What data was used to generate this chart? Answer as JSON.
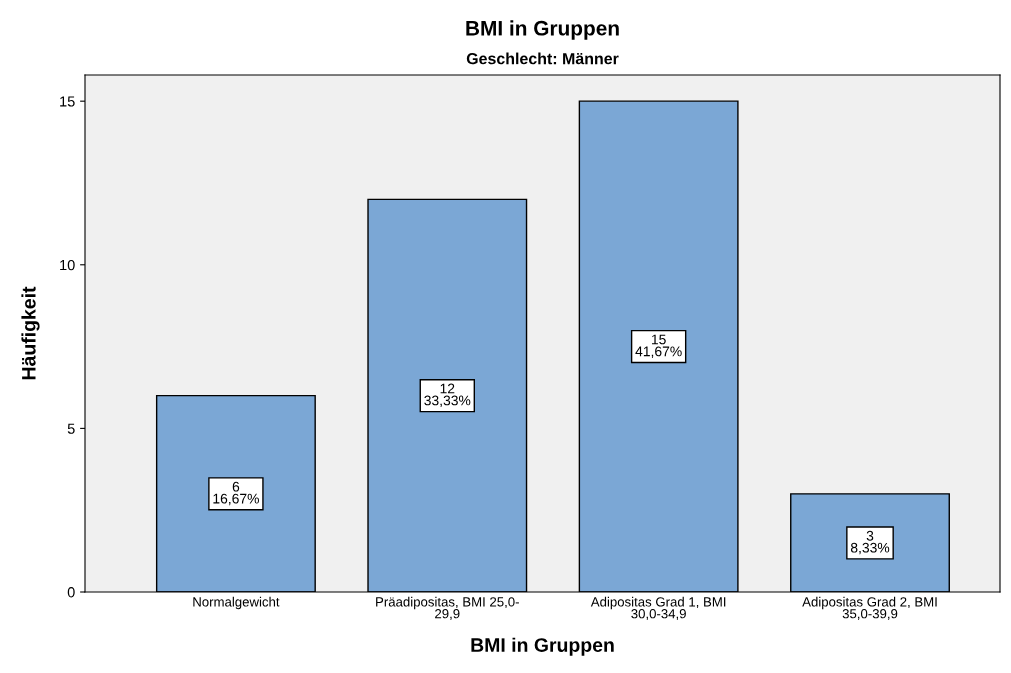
{
  "chart_data": {
    "type": "bar",
    "title": "BMI in Gruppen",
    "subtitle": "Geschlecht: Männer",
    "xlabel": "BMI in Gruppen",
    "ylabel": "Häufigkeit",
    "categories": [
      "Normalgewicht",
      "Präadipositas, BMI 25,0-\n29,9",
      "Adipositas Grad 1, BMI\n30,0-34,9",
      "Adipositas Grad 2, BMI\n35,0-39,9"
    ],
    "values": [
      6,
      12,
      15,
      3
    ],
    "color": "#7ba7d5",
    "value_labels": [
      "6\n16,67%",
      "12\n33,33%",
      "15\n41,67%",
      "3\n8,33%"
    ],
    "ylim": [
      0,
      15.8
    ],
    "yticks": [
      0,
      5,
      10,
      15
    ],
    "grid": false,
    "legend": false
  }
}
